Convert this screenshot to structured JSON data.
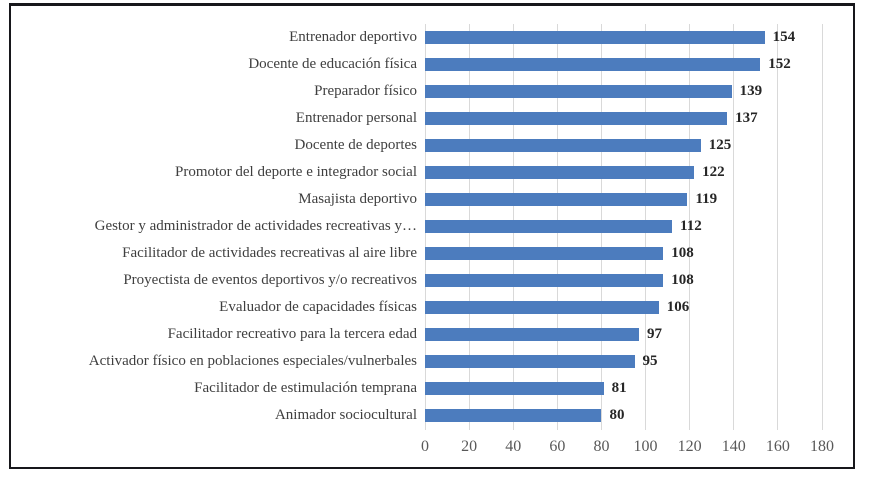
{
  "chart_data": {
    "type": "bar",
    "orientation": "horizontal",
    "title": "",
    "xlabel": "",
    "ylabel": "",
    "categories": [
      "Entrenador deportivo",
      "Docente de educación física",
      "Preparador físico",
      "Entrenador personal",
      "Docente de deportes",
      "Promotor del deporte e integrador social",
      "Masajista deportivo",
      "Gestor y administrador de actividades recreativas y…",
      "Facilitador de actividades recreativas al aire libre",
      "Proyectista de eventos deportivos y/o recreativos",
      "Evaluador de capacidades físicas",
      "Facilitador recreativo para la tercera edad",
      "Activador físico en poblaciones especiales/vulnerbales",
      "Facilitador de estimulación temprana",
      "Animador sociocultural"
    ],
    "values": [
      154,
      152,
      139,
      137,
      125,
      122,
      119,
      112,
      108,
      108,
      106,
      97,
      95,
      81,
      80
    ],
    "xlim": [
      0,
      180
    ],
    "x_ticks": [
      0,
      20,
      40,
      60,
      80,
      100,
      120,
      140,
      160,
      180
    ],
    "grid": "vertical",
    "legend": "none",
    "colors": {
      "bar": "#4C7CBE",
      "gridline": "#D9D9D9",
      "category_label": "#3F3F3F",
      "value_label": "#262626",
      "axis_label": "#595959",
      "frame_border": "#17171b"
    }
  }
}
